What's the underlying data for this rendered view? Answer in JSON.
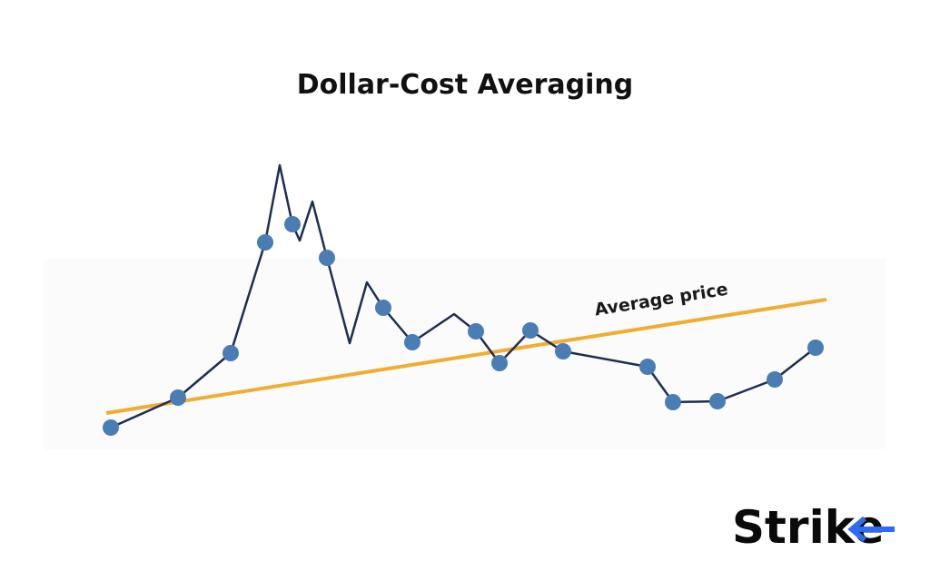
{
  "header": {
    "title": "Dollar-Cost Averaging"
  },
  "annotation": {
    "label": "Average price"
  },
  "logo": {
    "text": "Strike"
  }
}
